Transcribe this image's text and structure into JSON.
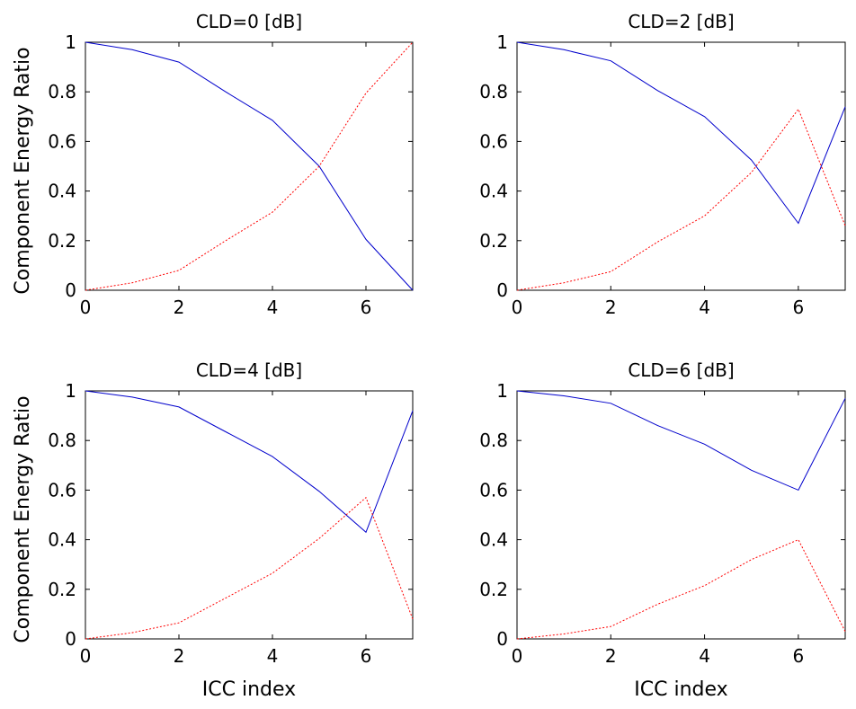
{
  "chart_data": [
    {
      "type": "line",
      "title": "CLD=0 [dB]",
      "xlabel": "",
      "ylabel": "Component Energy Ratio",
      "xlim": [
        0,
        7
      ],
      "ylim": [
        0,
        1
      ],
      "xticks": [
        "0",
        "2",
        "4",
        "6"
      ],
      "yticks": [
        "0",
        "0.2",
        "0.4",
        "0.6",
        "0.8",
        "1"
      ],
      "x": [
        0,
        1,
        2,
        3,
        4,
        5,
        6,
        7
      ],
      "series": [
        {
          "style": "solid",
          "color": "#0000cc",
          "values": [
            1.0,
            0.97,
            0.92,
            0.8,
            0.685,
            0.5,
            0.205,
            0.0
          ]
        },
        {
          "style": "dotted",
          "color": "#ff0000",
          "values": [
            0.0,
            0.03,
            0.08,
            0.2,
            0.315,
            0.5,
            0.795,
            1.0
          ]
        }
      ]
    },
    {
      "type": "line",
      "title": "CLD=2 [dB]",
      "xlabel": "",
      "ylabel": "",
      "xlim": [
        0,
        7
      ],
      "ylim": [
        0,
        1
      ],
      "xticks": [
        "0",
        "2",
        "4",
        "6"
      ],
      "yticks": [
        "0",
        "0.2",
        "0.4",
        "0.6",
        "0.8",
        "1"
      ],
      "x": [
        0,
        1,
        2,
        3,
        4,
        5,
        6,
        7
      ],
      "series": [
        {
          "style": "solid",
          "color": "#0000cc",
          "values": [
            1.0,
            0.97,
            0.925,
            0.805,
            0.7,
            0.525,
            0.27,
            0.74
          ]
        },
        {
          "style": "dotted",
          "color": "#ff0000",
          "values": [
            0.0,
            0.03,
            0.075,
            0.195,
            0.3,
            0.475,
            0.73,
            0.26
          ]
        }
      ]
    },
    {
      "type": "line",
      "title": "CLD=4 [dB]",
      "xlabel": "ICC index",
      "ylabel": "Component Energy Ratio",
      "xlim": [
        0,
        7
      ],
      "ylim": [
        0,
        1
      ],
      "xticks": [
        "0",
        "2",
        "4",
        "6"
      ],
      "yticks": [
        "0",
        "0.2",
        "0.4",
        "0.6",
        "0.8",
        "1"
      ],
      "x": [
        0,
        1,
        2,
        3,
        4,
        5,
        6,
        7
      ],
      "series": [
        {
          "style": "solid",
          "color": "#0000cc",
          "values": [
            1.0,
            0.975,
            0.935,
            0.835,
            0.735,
            0.595,
            0.43,
            0.92
          ]
        },
        {
          "style": "dotted",
          "color": "#ff0000",
          "values": [
            0.0,
            0.025,
            0.065,
            0.165,
            0.265,
            0.405,
            0.57,
            0.08
          ]
        }
      ]
    },
    {
      "type": "line",
      "title": "CLD=6 [dB]",
      "xlabel": "ICC index",
      "ylabel": "",
      "xlim": [
        0,
        7
      ],
      "ylim": [
        0,
        1
      ],
      "xticks": [
        "0",
        "2",
        "4",
        "6"
      ],
      "yticks": [
        "0",
        "0.2",
        "0.4",
        "0.6",
        "0.8",
        "1"
      ],
      "x": [
        0,
        1,
        2,
        3,
        4,
        5,
        6,
        7
      ],
      "series": [
        {
          "style": "solid",
          "color": "#0000cc",
          "values": [
            1.0,
            0.98,
            0.95,
            0.86,
            0.785,
            0.68,
            0.6,
            0.97
          ]
        },
        {
          "style": "dotted",
          "color": "#ff0000",
          "values": [
            0.0,
            0.02,
            0.05,
            0.14,
            0.215,
            0.32,
            0.4,
            0.03
          ]
        }
      ]
    }
  ]
}
